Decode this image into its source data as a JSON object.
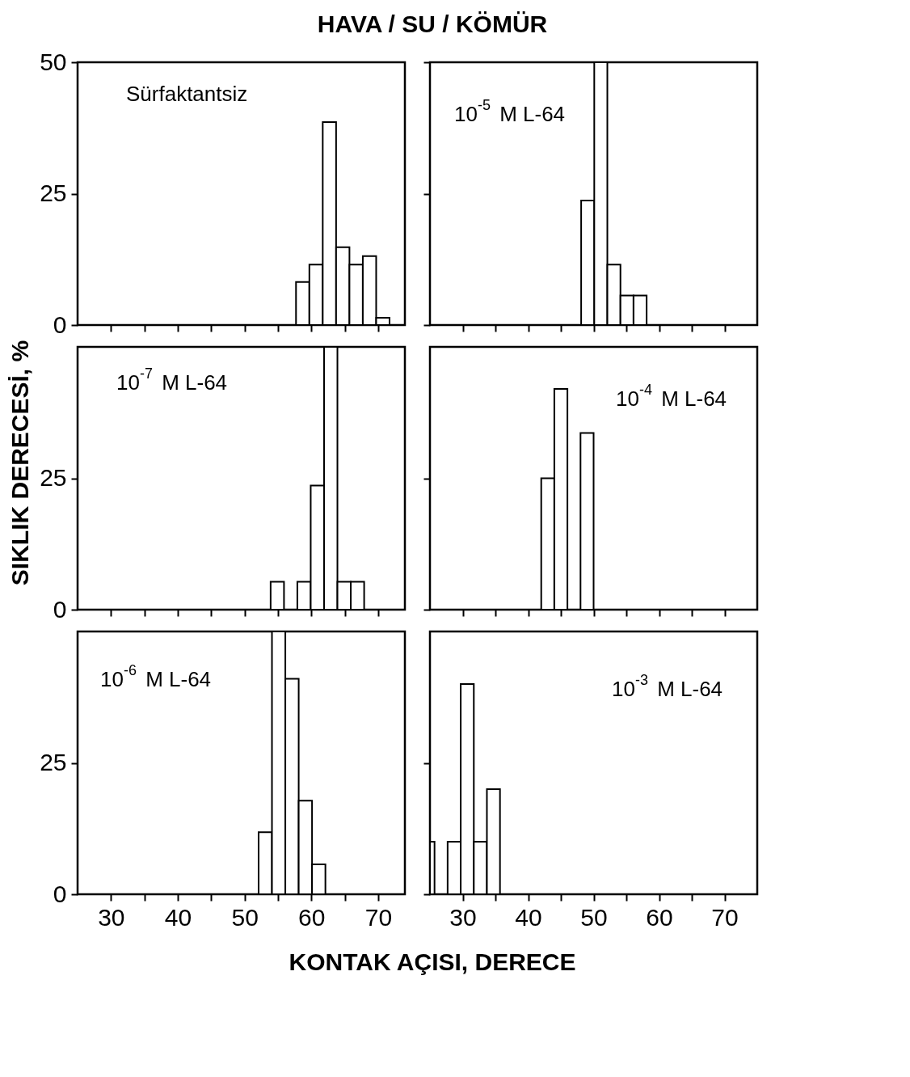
{
  "chart_data": [
    {
      "type": "histogram",
      "title": "HAVA / SU / KÖMÜR",
      "annotations": [
        "Sürfaktantsiz"
      ],
      "bins": [
        57.7,
        59.7,
        61.7,
        63.7,
        65.7,
        67.7,
        69.7,
        71.7
      ],
      "values": [
        8.2,
        11.5,
        38.6,
        14.8,
        11.5,
        13.1,
        1.4
      ],
      "xlim": [
        25,
        74
      ],
      "ylim": [
        0,
        50
      ],
      "xticks": [
        30,
        {
          "value": 35,
          "label": null
        },
        40,
        {
          "value": 45,
          "label": null
        },
        50,
        {
          "value": 55,
          "label": null
        },
        60,
        {
          "value": 65,
          "label": null
        },
        70
      ],
      "yticks": [
        0,
        25,
        50
      ],
      "tick_labels": "y"
    },
    {
      "type": "histogram",
      "annotations": [
        "10$^{-5}$ M L-64"
      ],
      "bins": [
        48.1,
        50.1,
        52.1,
        54.1,
        56.1,
        58.1
      ],
      "values": [
        23.7,
        50,
        11.5,
        5.6,
        5.6
      ],
      "xlim": [
        25,
        75
      ],
      "ylim": [
        0,
        50
      ],
      "xticks": [
        30,
        {
          "value": 35,
          "label": null
        },
        40,
        {
          "value": 45,
          "label": null
        },
        50,
        {
          "value": 55,
          "label": null
        },
        60,
        {
          "value": 65,
          "label": null
        },
        70
      ],
      "yticks": [
        {
          "value": 0,
          "label": null
        },
        {
          "value": 25,
          "label": null
        },
        {
          "value": 50,
          "label": null
        }
      ],
      "tick_labels": false
    },
    {
      "type": "histogram",
      "ylabel": "SIKLIK DERECESİ, %",
      "annotations": [
        "10$^{-7}$ M L-64"
      ],
      "bins": [
        53.9,
        55.9,
        57.9,
        59.9,
        61.9,
        63.9,
        65.9,
        67.9
      ],
      "values": [
        5.3,
        0,
        5.3,
        23.6,
        50,
        5.3,
        5.3
      ],
      "xlim": [
        25,
        74
      ],
      "ylim": [
        0,
        50
      ],
      "xticks": [
        30,
        {
          "value": 35,
          "label": null
        },
        40,
        {
          "value": 45,
          "label": null
        },
        50,
        {
          "value": 55,
          "label": null
        },
        60,
        {
          "value": 65,
          "label": null
        },
        70
      ],
      "yticks": [
        0,
        25
      ],
      "tick_labels": "y"
    },
    {
      "type": "histogram",
      "annotations": [
        "10$^{-4}$ M L-64"
      ],
      "bins": [
        42,
        44,
        46,
        48,
        50
      ],
      "values": [
        25,
        42,
        0,
        33.6
      ],
      "xlim": [
        25,
        75
      ],
      "ylim": [
        0,
        50
      ],
      "xticks": [
        30,
        {
          "value": 35,
          "label": null
        },
        40,
        {
          "value": 45,
          "label": null
        },
        50,
        {
          "value": 55,
          "label": null
        },
        60,
        {
          "value": 65,
          "label": null
        },
        70
      ],
      "yticks": [
        {
          "value": 0,
          "label": null
        },
        {
          "value": 25,
          "label": null
        }
      ],
      "tick_labels": false
    },
    {
      "type": "histogram",
      "xlabel": "KONTAK AÇISI, DERECE",
      "annotations": [
        "10$^{-6}$ M L-64"
      ],
      "bins": [
        52.1,
        54.1,
        56.1,
        58.1,
        60.1,
        62.1
      ],
      "values": [
        11.8,
        50,
        41,
        17.8,
        5.7
      ],
      "xlim": [
        25,
        74
      ],
      "ylim": [
        0,
        50
      ],
      "xticks": [
        30,
        {
          "value": 35,
          "label": null
        },
        40,
        {
          "value": 45,
          "label": null
        },
        50,
        {
          "value": 55,
          "label": null
        },
        60,
        {
          "value": 65,
          "label": null
        },
        70
      ],
      "yticks": [
        0,
        25
      ]
    },
    {
      "type": "histogram",
      "annotations": [
        "10$^{-3}$ M L-64"
      ],
      "bins": [
        25,
        25.7,
        27.7,
        29.7,
        31.7,
        33.7,
        35.7
      ],
      "values": [
        10,
        0,
        10,
        40,
        10,
        20
      ],
      "xlim": [
        25,
        75
      ],
      "ylim": [
        0,
        50
      ],
      "xticks": [
        30,
        {
          "value": 35,
          "label": null
        },
        40,
        {
          "value": 45,
          "label": null
        },
        50,
        {
          "value": 55,
          "label": null
        },
        60,
        {
          "value": 65,
          "label": null
        },
        70
      ],
      "yticks": [
        {
          "value": 0,
          "label": null
        },
        {
          "value": 25,
          "label": null
        }
      ],
      "tick_labels": "x"
    }
  ]
}
